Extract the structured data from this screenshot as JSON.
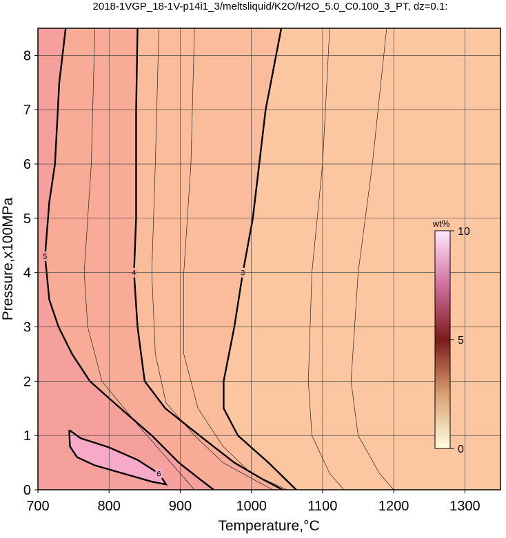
{
  "chart_data": {
    "type": "contour",
    "title": "2018-1VGP_18-1V-p14i1_3/meltsliquid/K2O/H2O_5.0_C0.100_3_PT, dz=0.1:",
    "x_label": "Temperature,°C",
    "y_label": "Pressure,x100MPa",
    "xlim": [
      700,
      1350
    ],
    "ylim": [
      0,
      8.5
    ],
    "xticks": [
      700,
      800,
      900,
      1000,
      1100,
      1200,
      1300
    ],
    "yticks": [
      0,
      1,
      2,
      3,
      4,
      5,
      6,
      7,
      8
    ],
    "grid": true,
    "background": "#fcc6a0",
    "colorbar": {
      "label": "wt%",
      "lim": [
        0,
        10
      ],
      "ticks": [
        0,
        5,
        10
      ]
    },
    "contours": [
      {
        "level": 3,
        "color": "#fbbc9c",
        "x": [
          1042,
          1020,
          1002,
          988,
          976,
          961,
          961,
          981,
          1024,
          1063
        ],
        "y": [
          8.5,
          7,
          5,
          4,
          3,
          2,
          1.5,
          1,
          0.5,
          0
        ]
      },
      {
        "level": 4,
        "color": "#f8ac98",
        "x": [
          840,
          838,
          838,
          835,
          840,
          850,
          879,
          927,
          976,
          1015,
          1044
        ],
        "y": [
          8.5,
          7,
          5,
          4,
          3,
          2,
          1.5,
          1,
          0.5,
          0.2,
          0
        ]
      },
      {
        "level": 5,
        "color": "#f5a09c",
        "x": [
          739,
          730,
          724,
          716,
          710,
          716,
          729,
          748,
          773,
          816,
          860,
          898,
          927,
          947
        ],
        "y": [
          8.5,
          7.5,
          6,
          5.3,
          4.3,
          3.5,
          3,
          2.5,
          2,
          1.5,
          1,
          0.5,
          0.2,
          0
        ]
      },
      {
        "level": 6,
        "color": "#f6aac8",
        "x": [
          744,
          760,
          800,
          840,
          870,
          880,
          860,
          820,
          780,
          755,
          745,
          744
        ],
        "y": [
          1.1,
          0.95,
          0.78,
          0.55,
          0.3,
          0.1,
          0.15,
          0.3,
          0.45,
          0.6,
          0.8,
          1.1
        ]
      }
    ],
    "thin_contours": [
      {
        "level": 2.8,
        "x": [
          1190,
          1170,
          1150,
          1140,
          1150,
          1180,
          1200
        ],
        "y": [
          8.5,
          6,
          4,
          2,
          1,
          0.3,
          0
        ]
      },
      {
        "level": 2.9,
        "x": [
          1110,
          1100,
          1085,
          1080,
          1085,
          1110,
          1130
        ],
        "y": [
          8.5,
          6,
          4,
          2,
          1,
          0.3,
          0
        ]
      },
      {
        "level": 3.5,
        "x": [
          920,
          915,
          905,
          905,
          925,
          960,
          1000,
          1050
        ],
        "y": [
          8.5,
          6,
          4,
          2.5,
          1.5,
          0.8,
          0.3,
          0
        ]
      },
      {
        "level": 3.8,
        "x": [
          870,
          865,
          860,
          865,
          880,
          920,
          960,
          1030
        ],
        "y": [
          8.5,
          6,
          4,
          2.5,
          1.6,
          1,
          0.5,
          0
        ]
      },
      {
        "level": 4.5,
        "x": [
          780,
          775,
          765,
          770,
          790,
          840,
          880,
          920
        ],
        "y": [
          8.5,
          6,
          4,
          3,
          2,
          1.2,
          0.6,
          0
        ]
      }
    ]
  }
}
